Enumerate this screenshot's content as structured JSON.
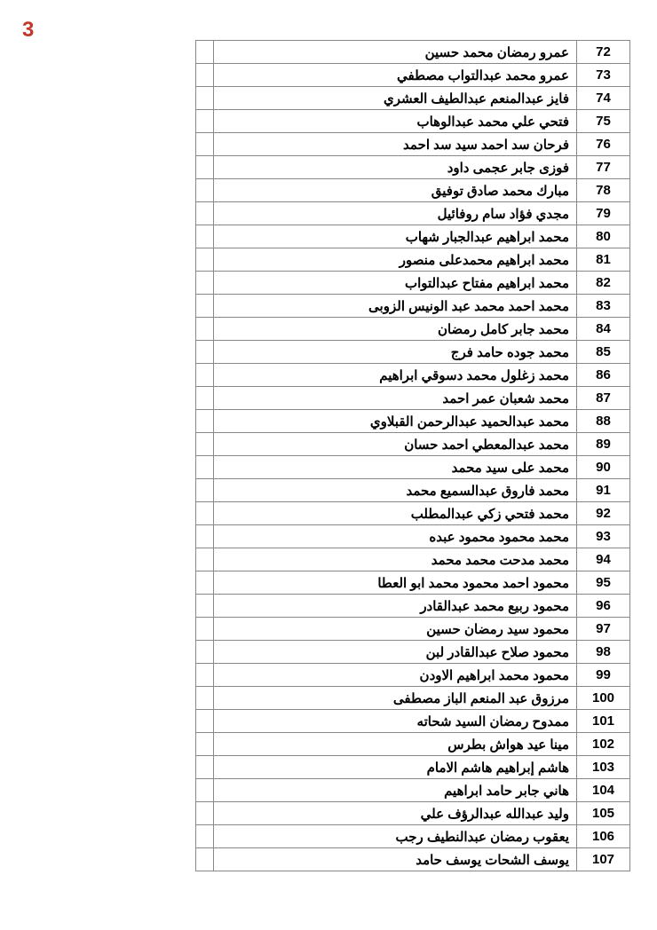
{
  "page_number": "3",
  "table": {
    "columns": [
      "number",
      "name",
      "empty"
    ],
    "rows": [
      {
        "num": "72",
        "name": "عمرو رمضان محمد حسين"
      },
      {
        "num": "73",
        "name": "عمرو محمد عبدالتواب مصطفي"
      },
      {
        "num": "74",
        "name": "فايز عبدالمنعم عبدالطيف العشري"
      },
      {
        "num": "75",
        "name": "فتحي علي محمد عبدالوهاب"
      },
      {
        "num": "76",
        "name": "فرحان سد احمد سيد سد احمد"
      },
      {
        "num": "77",
        "name": "فوزى جابر عجمى داود"
      },
      {
        "num": "78",
        "name": "مبارك محمد صادق توفيق"
      },
      {
        "num": "79",
        "name": "مجدي فؤاد سام روفائيل"
      },
      {
        "num": "80",
        "name": "محمد ابراهيم عبدالجبار شهاب"
      },
      {
        "num": "81",
        "name": "محمد ابراهيم محمدعلى منصور"
      },
      {
        "num": "82",
        "name": "محمد ابراهيم مفتاح عبدالتواب"
      },
      {
        "num": "83",
        "name": "محمد احمد محمد عبد الونيس الزوبى"
      },
      {
        "num": "84",
        "name": "محمد جابر كامل رمضان"
      },
      {
        "num": "85",
        "name": "محمد جوده حامد فرج"
      },
      {
        "num": "86",
        "name": "محمد زغلول محمد دسوقي ابراهيم"
      },
      {
        "num": "87",
        "name": "محمد شعبان عمر احمد"
      },
      {
        "num": "88",
        "name": "محمد عبدالحميد عبدالرحمن القبلاوي"
      },
      {
        "num": "89",
        "name": "محمد عبدالمعطي احمد حسان"
      },
      {
        "num": "90",
        "name": "محمد على سيد محمد"
      },
      {
        "num": "91",
        "name": "محمد فاروق عبدالسميع محمد"
      },
      {
        "num": "92",
        "name": "محمد فتحي زكي عبدالمطلب"
      },
      {
        "num": "93",
        "name": "محمد محمود محمود عبده"
      },
      {
        "num": "94",
        "name": "محمد مدحت محمد محمد"
      },
      {
        "num": "95",
        "name": "محمود احمد محمود محمد ابو العطا"
      },
      {
        "num": "96",
        "name": "محمود ربيع محمد عبدالقادر"
      },
      {
        "num": "97",
        "name": "محمود سيد رمضان حسين"
      },
      {
        "num": "98",
        "name": "محمود صلاح عبدالقادر لبن"
      },
      {
        "num": "99",
        "name": "محمود محمد ابراهيم الاودن"
      },
      {
        "num": "100",
        "name": "مرزوق عبد المنعم الباز مصطفى"
      },
      {
        "num": "101",
        "name": "ممدوح رمضان السيد شحاته"
      },
      {
        "num": "102",
        "name": "مينا عيد هواش بطرس"
      },
      {
        "num": "103",
        "name": "هاشم إبراهيم هاشم الامام"
      },
      {
        "num": "104",
        "name": "هاني جابر حامد ابراهيم"
      },
      {
        "num": "105",
        "name": "وليد عبدالله عبدالرؤف علي"
      },
      {
        "num": "106",
        "name": "يعقوب رمضان عبدالنطيف رجب"
      },
      {
        "num": "107",
        "name": "يوسف الشحات يوسف حامد"
      }
    ]
  }
}
